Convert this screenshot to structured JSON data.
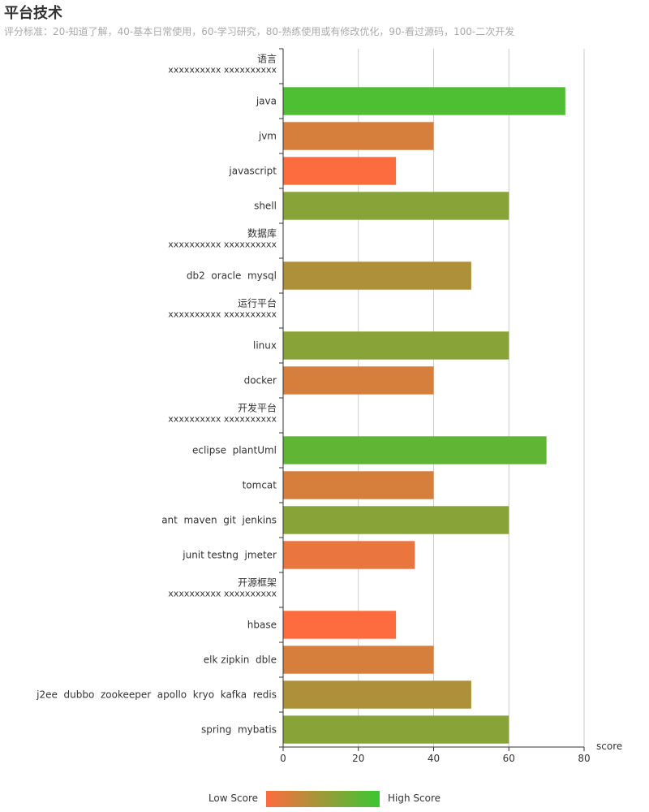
{
  "chart_data": {
    "type": "bar",
    "orientation": "horizontal",
    "title": "平台技术",
    "subtitle": "评分标准：20-知道了解，40-基本日常使用，60-学习研究，80-熟练使用或有修改优化，90-看过源码，100-二次开发",
    "xlabel": "score",
    "xlim": [
      0,
      80
    ],
    "xticks": [
      0,
      20,
      40,
      60,
      80
    ],
    "grid": true,
    "categories": [
      {
        "label": "语言",
        "sub": "xxxxxxxxxx xxxxxxxxxx",
        "value": null
      },
      {
        "label": "java",
        "value": 75
      },
      {
        "label": "jvm",
        "value": 40
      },
      {
        "label": "javascript",
        "value": 30
      },
      {
        "label": "shell",
        "value": 60
      },
      {
        "label": "数据库",
        "sub": "xxxxxxxxxx xxxxxxxxxx",
        "value": null
      },
      {
        "label": "db2  oracle  mysql",
        "value": 50
      },
      {
        "label": "运行平台",
        "sub": "xxxxxxxxxx xxxxxxxxxx",
        "value": null
      },
      {
        "label": "linux",
        "value": 60
      },
      {
        "label": "docker",
        "value": 40
      },
      {
        "label": "开发平台",
        "sub": "xxxxxxxxxx xxxxxxxxxx",
        "value": null
      },
      {
        "label": "eclipse  plantUml",
        "value": 70
      },
      {
        "label": "tomcat",
        "value": 40
      },
      {
        "label": "ant  maven  git  jenkins",
        "value": 60
      },
      {
        "label": "junit testng  jmeter",
        "value": 35
      },
      {
        "label": "开源框架",
        "sub": "xxxxxxxxxx xxxxxxxxxx",
        "value": null
      },
      {
        "label": "hbase",
        "value": 30
      },
      {
        "label": "elk zipkin  dble",
        "value": 40
      },
      {
        "label": "j2ee  dubbo  zookeeper  apollo  kryo  kafka  redis",
        "value": 50
      },
      {
        "label": "spring  mybatis",
        "value": 60
      }
    ],
    "visual_map": {
      "low_label": "Low Score",
      "high_label": "High Score",
      "min": 30,
      "max": 80,
      "low_color": "#fd6c3f",
      "high_color": "#3ac732"
    },
    "colors": {
      "axis": "#333333",
      "grid": "#cccccc",
      "label": "#333333"
    }
  }
}
